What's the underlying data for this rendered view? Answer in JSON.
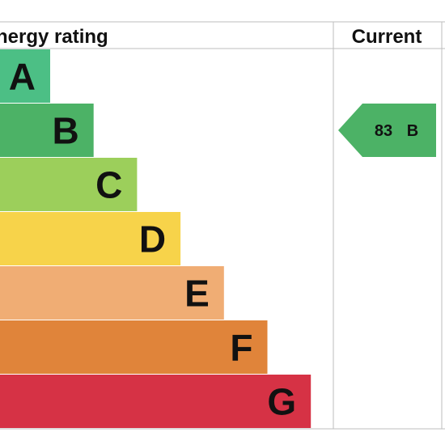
{
  "chart_data": {
    "type": "bar",
    "title": "Energy rating",
    "current_column_label": "Current",
    "categories": [
      "A",
      "B",
      "C",
      "D",
      "E",
      "F",
      "G"
    ],
    "band_colors": [
      "#4cbf85",
      "#4cb266",
      "#9ccf5b",
      "#f7d34a",
      "#f0ad74",
      "#e0843a",
      "#d63245"
    ],
    "current_rating": {
      "value": "83",
      "band": "B",
      "arrow_color": "#4cb266"
    }
  }
}
